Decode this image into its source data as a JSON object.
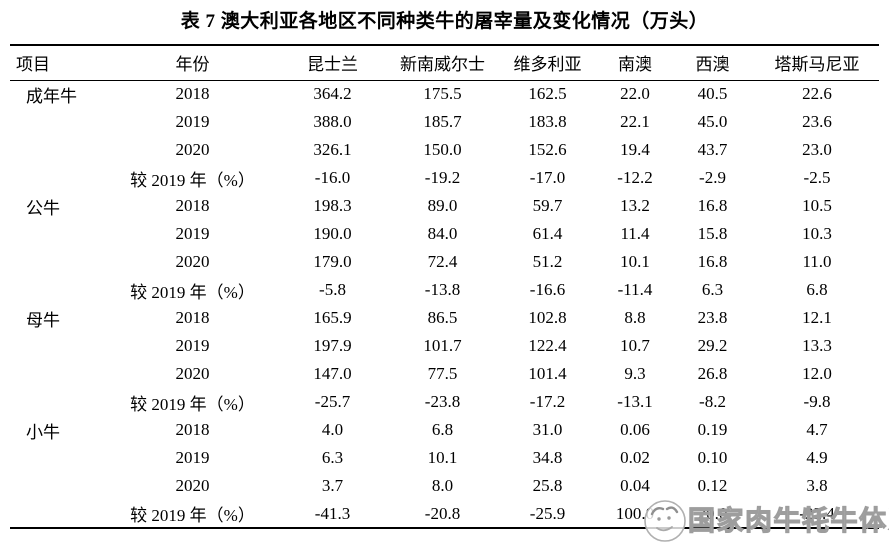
{
  "page": {
    "title": "表 7 澳大利亚各地区不同种类牛的屠宰量及变化情况（万头）"
  },
  "table": {
    "headers": [
      "项目",
      "年份",
      "昆士兰",
      "新南威尔士",
      "维多利亚",
      "南澳",
      "西澳",
      "塔斯马尼亚"
    ],
    "sections": [
      {
        "item": "成年牛",
        "rows": [
          {
            "year": "2018",
            "values": [
              "364.2",
              "175.5",
              "162.5",
              "22.0",
              "40.5",
              "22.6"
            ]
          },
          {
            "year": "2019",
            "values": [
              "388.0",
              "185.7",
              "183.8",
              "22.1",
              "45.0",
              "23.6"
            ]
          },
          {
            "year": "2020",
            "values": [
              "326.1",
              "150.0",
              "152.6",
              "19.4",
              "43.7",
              "23.0"
            ]
          },
          {
            "year": "较 2019 年（%）",
            "values": [
              "-16.0",
              "-19.2",
              "-17.0",
              "-12.2",
              "-2.9",
              "-2.5"
            ]
          }
        ]
      },
      {
        "item": "公牛",
        "rows": [
          {
            "year": "2018",
            "values": [
              "198.3",
              "89.0",
              "59.7",
              "13.2",
              "16.8",
              "10.5"
            ]
          },
          {
            "year": "2019",
            "values": [
              "190.0",
              "84.0",
              "61.4",
              "11.4",
              "15.8",
              "10.3"
            ]
          },
          {
            "year": "2020",
            "values": [
              "179.0",
              "72.4",
              "51.2",
              "10.1",
              "16.8",
              "11.0"
            ]
          },
          {
            "year": "较 2019 年（%）",
            "values": [
              "-5.8",
              "-13.8",
              "-16.6",
              "-11.4",
              "6.3",
              "6.8"
            ]
          }
        ]
      },
      {
        "item": "母牛",
        "rows": [
          {
            "year": "2018",
            "values": [
              "165.9",
              "86.5",
              "102.8",
              "8.8",
              "23.8",
              "12.1"
            ]
          },
          {
            "year": "2019",
            "values": [
              "197.9",
              "101.7",
              "122.4",
              "10.7",
              "29.2",
              "13.3"
            ]
          },
          {
            "year": "2020",
            "values": [
              "147.0",
              "77.5",
              "101.4",
              "9.3",
              "26.8",
              "12.0"
            ]
          },
          {
            "year": "较 2019 年（%）",
            "values": [
              "-25.7",
              "-23.8",
              "-17.2",
              "-13.1",
              "-8.2",
              "-9.8"
            ]
          }
        ]
      },
      {
        "item": "小牛",
        "rows": [
          {
            "year": "2018",
            "values": [
              "4.0",
              "6.8",
              "31.0",
              "0.06",
              "0.19",
              "4.7"
            ]
          },
          {
            "year": "2019",
            "values": [
              "6.3",
              "10.1",
              "34.8",
              "0.02",
              "0.10",
              "4.9"
            ]
          },
          {
            "year": "2020",
            "values": [
              "3.7",
              "8.0",
              "25.8",
              "0.04",
              "0.12",
              "3.8"
            ]
          },
          {
            "year": "较 2019 年（%）",
            "values": [
              "-41.3",
              "-20.8",
              "-25.9",
              "100.0",
              "20.0",
              "-22.4"
            ]
          }
        ]
      }
    ]
  },
  "watermark": {
    "text": "国家肉牛牦牛体系"
  }
}
